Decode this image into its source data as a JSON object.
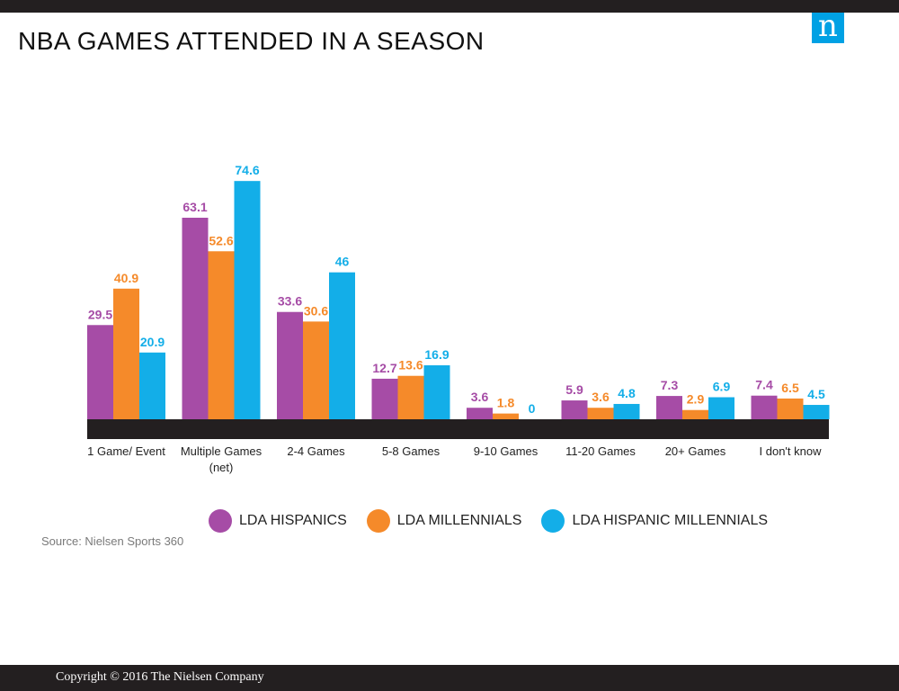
{
  "page": {
    "title": "NBA GAMES ATTENDED IN A SEASON",
    "logo_letter": "n",
    "source": "Source: Nielsen Sports 360",
    "copyright": "Copyright © 2016 The Nielsen Company"
  },
  "colors": {
    "accent": "#00a1e4",
    "dark": "#231f20"
  },
  "chart_data": {
    "type": "bar",
    "title": "NBA GAMES ATTENDED IN A SEASON",
    "xlabel": "",
    "ylabel": "",
    "ylim": [
      0,
      80
    ],
    "grid": false,
    "legend_position": "bottom",
    "categories": [
      [
        "1 Game/ Event"
      ],
      [
        "Multiple Games",
        "(net)"
      ],
      [
        "2-4 Games"
      ],
      [
        "5-8 Games"
      ],
      [
        "9-10 Games"
      ],
      [
        "11-20 Games"
      ],
      [
        "20+ Games"
      ],
      [
        "I don't know"
      ]
    ],
    "series": [
      {
        "name": "LDA HISPANICS",
        "color": "#a64ca6",
        "values": [
          29.5,
          63.1,
          33.6,
          12.7,
          3.6,
          5.9,
          7.3,
          7.4
        ]
      },
      {
        "name": "LDA MILLENNIALS",
        "color": "#f58a2a",
        "values": [
          40.9,
          52.6,
          30.6,
          13.6,
          1.8,
          3.6,
          2.9,
          6.5
        ]
      },
      {
        "name": "LDA HISPANIC MILLENNIALS",
        "color": "#13aee8",
        "values": [
          20.9,
          74.6,
          46,
          16.9,
          0,
          4.8,
          6.9,
          4.5
        ]
      }
    ]
  }
}
